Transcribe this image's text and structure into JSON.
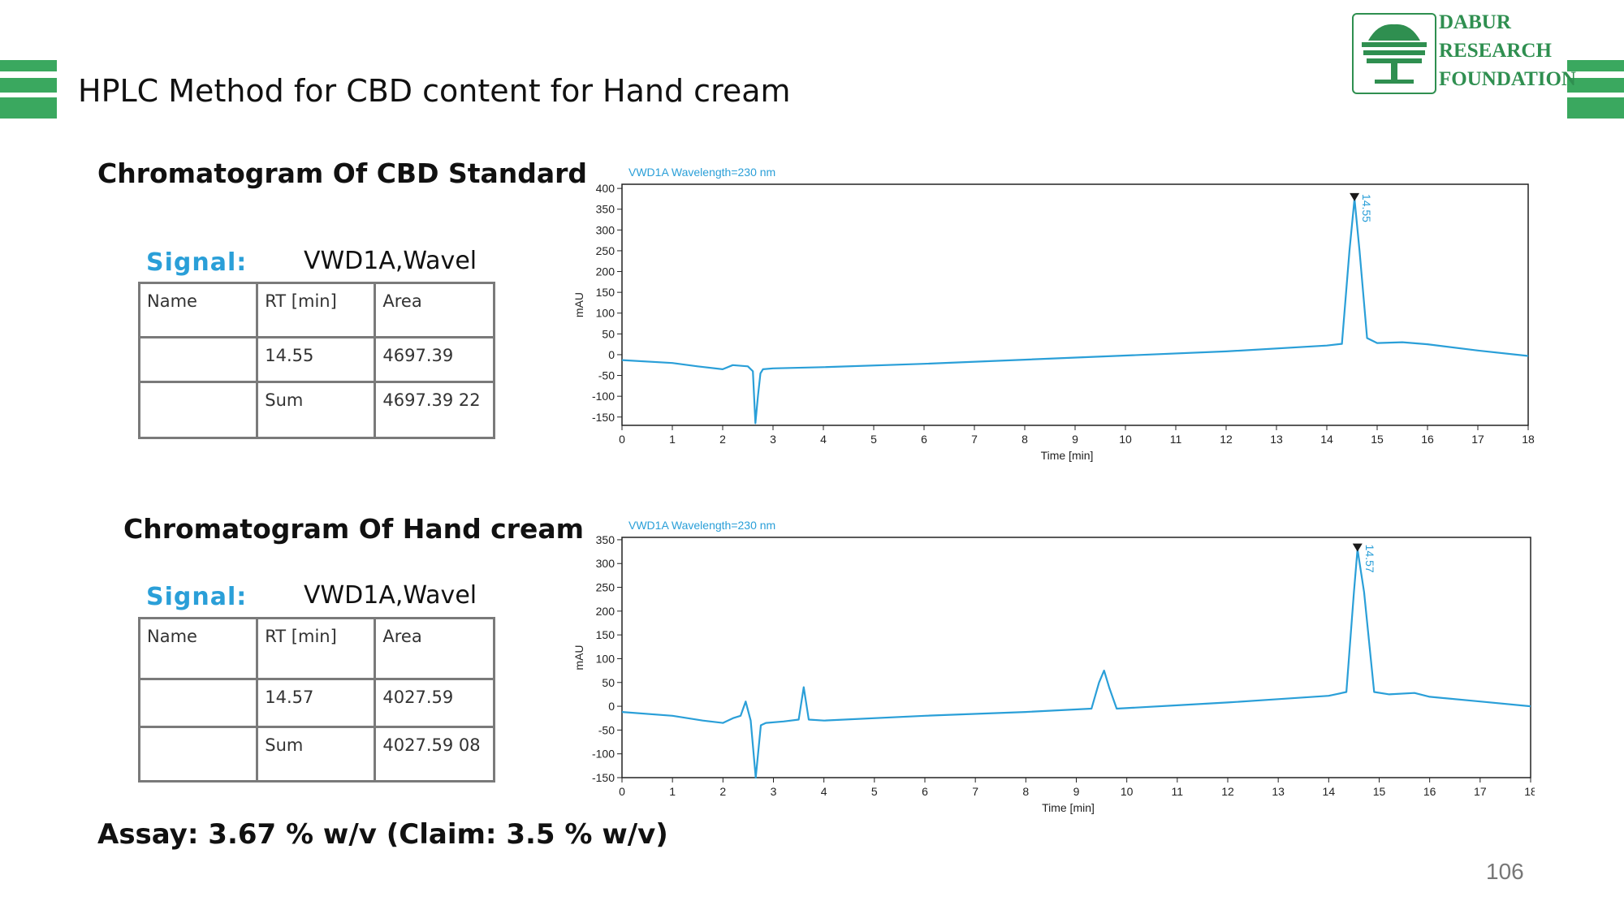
{
  "slide": {
    "title": "HPLC Method for CBD content for Hand cream",
    "page_number": "106",
    "accent_color": "#3aa85f",
    "assay_text": "Assay: 3.67 % w/v  (Claim: 3.5 % w/v)"
  },
  "logo": {
    "line1": "DABUR",
    "line2": "RESEARCH",
    "line3": "FOUNDATION",
    "color": "#2f8f50",
    "icon": "tree-icon"
  },
  "sections": [
    {
      "heading": "Chromatogram Of CBD Standard",
      "signal_label": "Signal:",
      "signal_value": "VWD1A,Wavel",
      "table": {
        "headers": [
          "Name",
          "RT [min]",
          "Area"
        ],
        "rows": [
          [
            "",
            "14.55",
            "4697.39"
          ],
          [
            "",
            "Sum",
            "4697.39 22"
          ]
        ]
      }
    },
    {
      "heading": "Chromatogram Of Hand cream",
      "signal_label": "Signal:",
      "signal_value": "VWD1A,Wavel",
      "table": {
        "headers": [
          "Name",
          "RT [min]",
          "Area"
        ],
        "rows": [
          [
            "",
            "14.57",
            "4027.59"
          ],
          [
            "",
            "Sum",
            "4027.59 08"
          ]
        ]
      }
    }
  ],
  "chart_data": [
    {
      "type": "line",
      "title": "VWD1A Wavelength=230 nm",
      "xlabel": "Time [min]",
      "ylabel": "mAU",
      "xlim": [
        0,
        18
      ],
      "ylim": [
        -170,
        410
      ],
      "xticks": [
        0,
        1,
        2,
        3,
        4,
        5,
        6,
        7,
        8,
        9,
        10,
        11,
        12,
        13,
        14,
        15,
        16,
        17,
        18
      ],
      "yticks": [
        -150,
        -100,
        -50,
        0,
        50,
        100,
        150,
        200,
        250,
        300,
        350,
        400
      ],
      "line_color": "#2a9fd8",
      "peak_label": "14.55",
      "peak_marker": {
        "x": 14.55,
        "y": 375
      },
      "series": [
        {
          "x": [
            0,
            1,
            1.5,
            2,
            2.2,
            2.5,
            2.6,
            2.65,
            2.7,
            2.75,
            2.8,
            3,
            4,
            6,
            8,
            10,
            12,
            14,
            14.3,
            14.45,
            14.55,
            14.65,
            14.8,
            15,
            15.5,
            16,
            17,
            18
          ],
          "y": [
            -13,
            -20,
            -28,
            -35,
            -25,
            -28,
            -40,
            -165,
            -100,
            -45,
            -35,
            -33,
            -30,
            -22,
            -12,
            -2,
            8,
            22,
            26,
            250,
            375,
            250,
            40,
            28,
            30,
            25,
            10,
            -3
          ]
        }
      ]
    },
    {
      "type": "line",
      "title": "VWD1A Wavelength=230 nm",
      "xlabel": "Time [min]",
      "ylabel": "mAU",
      "xlim": [
        0,
        18
      ],
      "ylim": [
        -150,
        355
      ],
      "xticks": [
        0,
        1,
        2,
        3,
        4,
        5,
        6,
        7,
        8,
        9,
        10,
        11,
        12,
        13,
        14,
        15,
        16,
        17,
        18
      ],
      "yticks": [
        -150,
        -100,
        -50,
        0,
        50,
        100,
        150,
        200,
        250,
        300,
        350
      ],
      "line_color": "#2a9fd8",
      "peak_label": "14.57",
      "peak_marker": {
        "x": 14.57,
        "y": 330
      },
      "series": [
        {
          "x": [
            0,
            1,
            1.6,
            2,
            2.2,
            2.35,
            2.45,
            2.55,
            2.65,
            2.75,
            2.85,
            3.2,
            3.5,
            3.6,
            3.7,
            4,
            6,
            8,
            9.3,
            9.45,
            9.55,
            9.65,
            9.8,
            11,
            12,
            13,
            14,
            14.35,
            14.5,
            14.57,
            14.7,
            14.9,
            15.2,
            15.7,
            16,
            17,
            18
          ],
          "y": [
            -12,
            -20,
            -30,
            -35,
            -25,
            -20,
            10,
            -30,
            -150,
            -40,
            -35,
            -32,
            -28,
            40,
            -28,
            -30,
            -20,
            -12,
            -5,
            50,
            75,
            40,
            -5,
            2,
            8,
            15,
            22,
            30,
            240,
            330,
            240,
            30,
            25,
            28,
            20,
            10,
            0
          ]
        }
      ]
    }
  ]
}
